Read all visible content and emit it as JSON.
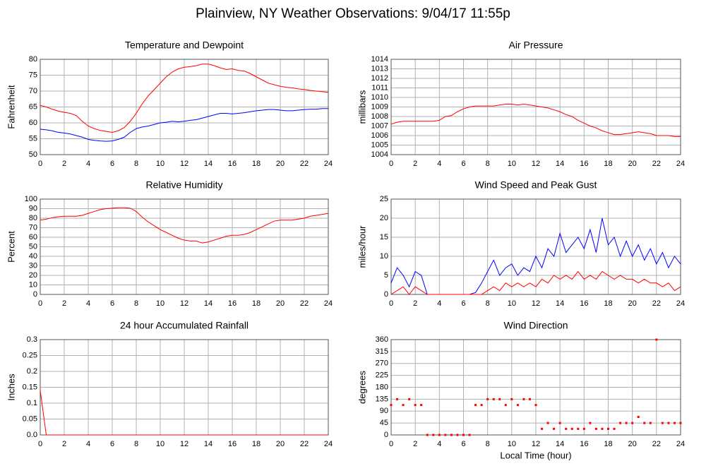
{
  "title": "Plainview, NY Weather Observations: 9/04/17 11:55p",
  "chart_data": [
    {
      "type": "line",
      "title": "Temperature and Dewpoint",
      "ylabel": "Fahrenheit",
      "x": [
        0,
        0.5,
        1,
        1.5,
        2,
        2.5,
        3,
        3.5,
        4,
        4.5,
        5,
        5.5,
        6,
        6.5,
        7,
        7.5,
        8,
        8.5,
        9,
        9.5,
        10,
        10.5,
        11,
        11.5,
        12,
        12.5,
        13,
        13.5,
        14,
        14.5,
        15,
        15.5,
        16,
        16.5,
        17,
        17.5,
        18,
        18.5,
        19,
        19.5,
        20,
        20.5,
        21,
        21.5,
        22,
        22.5,
        23,
        23.5,
        24
      ],
      "series": [
        {
          "color": "#ff0000",
          "values": [
            65.5,
            65,
            64.3,
            63.7,
            63.3,
            63,
            62.3,
            60.5,
            59,
            58.2,
            57.6,
            57.3,
            57,
            57.5,
            58.5,
            60.5,
            63,
            66,
            68.5,
            70.5,
            72.5,
            74.5,
            76,
            77,
            77.5,
            77.7,
            78,
            78.5,
            78.5,
            78,
            77.3,
            76.8,
            77,
            76.5,
            76.3,
            75.5,
            74.5,
            73.5,
            72.5,
            72,
            71.5,
            71.2,
            71,
            70.7,
            70.5,
            70.2,
            70,
            69.8,
            69.6
          ]
        },
        {
          "color": "#0000ff",
          "values": [
            58,
            57.8,
            57.5,
            57,
            56.8,
            56.5,
            56,
            55.5,
            54.8,
            54.5,
            54.3,
            54.2,
            54.3,
            54.8,
            55.5,
            57,
            58.2,
            58.7,
            59,
            59.5,
            60,
            60.2,
            60.5,
            60.3,
            60.5,
            60.8,
            61,
            61.5,
            62,
            62.5,
            63,
            63,
            62.8,
            63,
            63.2,
            63.5,
            63.8,
            64,
            64.2,
            64.2,
            64,
            63.8,
            63.8,
            64,
            64.2,
            64.3,
            64.3,
            64.5,
            64.5
          ]
        }
      ],
      "xlim": [
        0,
        24
      ],
      "xticks": [
        0,
        2,
        4,
        6,
        8,
        10,
        12,
        14,
        16,
        18,
        20,
        22,
        24
      ],
      "ylim": [
        50,
        80
      ],
      "yticks": [
        50,
        55,
        60,
        65,
        70,
        75,
        80
      ],
      "grid": true
    },
    {
      "type": "line",
      "title": "Air Pressure",
      "ylabel": "millibars",
      "x": [
        0,
        0.5,
        1,
        1.5,
        2,
        2.5,
        3,
        3.5,
        4,
        4.5,
        5,
        5.5,
        6,
        6.5,
        7,
        7.5,
        8,
        8.5,
        9,
        9.5,
        10,
        10.5,
        11,
        11.5,
        12,
        12.5,
        13,
        13.5,
        14,
        14.5,
        15,
        15.5,
        16,
        16.5,
        17,
        17.5,
        18,
        18.5,
        19,
        19.5,
        20,
        20.5,
        21,
        21.5,
        22,
        22.5,
        23,
        23.5,
        24
      ],
      "series": [
        {
          "color": "#ff0000",
          "values": [
            1007.2,
            1007.4,
            1007.5,
            1007.5,
            1007.5,
            1007.5,
            1007.5,
            1007.5,
            1007.6,
            1008,
            1008.1,
            1008.5,
            1008.8,
            1009,
            1009.1,
            1009.1,
            1009.1,
            1009.1,
            1009.2,
            1009.3,
            1009.3,
            1009.2,
            1009.3,
            1009.2,
            1009.1,
            1009,
            1008.9,
            1008.7,
            1008.5,
            1008.2,
            1008,
            1007.6,
            1007.3,
            1007,
            1006.8,
            1006.5,
            1006.3,
            1006.1,
            1006.1,
            1006.2,
            1006.3,
            1006.4,
            1006.3,
            1006.2,
            1006,
            1006,
            1006,
            1005.9,
            1005.9
          ]
        }
      ],
      "xlim": [
        0,
        24
      ],
      "xticks": [
        0,
        2,
        4,
        6,
        8,
        10,
        12,
        14,
        16,
        18,
        20,
        22,
        24
      ],
      "ylim": [
        1004,
        1014
      ],
      "yticks": [
        1004,
        1005,
        1006,
        1007,
        1008,
        1009,
        1010,
        1011,
        1012,
        1013,
        1014
      ],
      "grid": true
    },
    {
      "type": "line",
      "title": "Relative Humidity",
      "ylabel": "Percent",
      "x": [
        0,
        0.5,
        1,
        1.5,
        2,
        2.5,
        3,
        3.5,
        4,
        4.5,
        5,
        5.5,
        6,
        6.5,
        7,
        7.5,
        8,
        8.5,
        9,
        9.5,
        10,
        10.5,
        11,
        11.5,
        12,
        12.5,
        13,
        13.5,
        14,
        14.5,
        15,
        15.5,
        16,
        16.5,
        17,
        17.5,
        18,
        18.5,
        19,
        19.5,
        20,
        20.5,
        21,
        21.5,
        22,
        22.5,
        23,
        23.5,
        24
      ],
      "series": [
        {
          "color": "#ff0000",
          "values": [
            78,
            79,
            80.5,
            81.5,
            82,
            82,
            82,
            83,
            85,
            87,
            89,
            90,
            90.5,
            91,
            91,
            90.5,
            87,
            81,
            76,
            72,
            68,
            65,
            62,
            59,
            57,
            56,
            56,
            54,
            55,
            57,
            59,
            61,
            62,
            62,
            63,
            65,
            68,
            71,
            74,
            77,
            78,
            78,
            78,
            79,
            80,
            82,
            83,
            84,
            85
          ]
        }
      ],
      "xlim": [
        0,
        24
      ],
      "xticks": [
        0,
        2,
        4,
        6,
        8,
        10,
        12,
        14,
        16,
        18,
        20,
        22,
        24
      ],
      "ylim": [
        0,
        100
      ],
      "yticks": [
        0,
        10,
        20,
        30,
        40,
        50,
        60,
        70,
        80,
        90,
        100
      ],
      "grid": true
    },
    {
      "type": "line",
      "title": "Wind Speed and Peak Gust",
      "ylabel": "miles/hour",
      "x": [
        0,
        0.5,
        1,
        1.5,
        2,
        2.5,
        3,
        3.5,
        4,
        4.5,
        5,
        5.5,
        6,
        6.5,
        7,
        7.5,
        8,
        8.5,
        9,
        9.5,
        10,
        10.5,
        11,
        11.5,
        12,
        12.5,
        13,
        13.5,
        14,
        14.5,
        15,
        15.5,
        16,
        16.5,
        17,
        17.5,
        18,
        18.5,
        19,
        19.5,
        20,
        20.5,
        21,
        21.5,
        22,
        22.5,
        23,
        23.5,
        24
      ],
      "series": [
        {
          "color": "#0000ff",
          "values": [
            3,
            7,
            5,
            2,
            6,
            5,
            0,
            0,
            0,
            0,
            0,
            0,
            0,
            0,
            0.5,
            3,
            6,
            9,
            5,
            7,
            8,
            5,
            7,
            6,
            10,
            7,
            12,
            10,
            16,
            11,
            13,
            15,
            12,
            17,
            11,
            20,
            13,
            15,
            10,
            14,
            10,
            13,
            9,
            12,
            8,
            11,
            7,
            10,
            8
          ]
        },
        {
          "color": "#ff0000",
          "values": [
            0,
            1,
            2,
            0,
            2,
            1,
            0,
            0,
            0,
            0,
            0,
            0,
            0,
            0,
            0,
            0,
            1,
            2,
            1,
            3,
            2,
            3,
            2,
            3,
            2,
            4,
            3,
            5,
            4,
            5,
            4,
            6,
            4,
            5,
            4,
            6,
            5,
            4,
            5,
            4,
            4,
            3,
            4,
            3,
            3,
            2,
            3,
            1,
            2
          ]
        }
      ],
      "xlim": [
        0,
        24
      ],
      "xticks": [
        0,
        2,
        4,
        6,
        8,
        10,
        12,
        14,
        16,
        18,
        20,
        22,
        24
      ],
      "ylim": [
        0,
        25
      ],
      "yticks": [
        0,
        5,
        10,
        15,
        20,
        25
      ],
      "grid": true
    },
    {
      "type": "line",
      "title": "24 hour Accumulated Rainfall",
      "ylabel": "Inches",
      "x": [
        0,
        0.5,
        1,
        1.5,
        2,
        2.5,
        3,
        3.5,
        4,
        4.5,
        5,
        5.5,
        6,
        6.5,
        7,
        7.5,
        8,
        8.5,
        9,
        9.5,
        10,
        10.5,
        11,
        11.5,
        12,
        12.5,
        13,
        13.5,
        14,
        14.5,
        15,
        15.5,
        16,
        16.5,
        17,
        17.5,
        18,
        18.5,
        19,
        19.5,
        20,
        20.5,
        21,
        21.5,
        22,
        22.5,
        23,
        23.5,
        24
      ],
      "series": [
        {
          "color": "#ff0000",
          "values": [
            0.14,
            0,
            0,
            0,
            0,
            0,
            0,
            0,
            0,
            0,
            0,
            0,
            0,
            0,
            0,
            0,
            0,
            0,
            0,
            0,
            0,
            0,
            0,
            0,
            0,
            0,
            0,
            0,
            0,
            0,
            0,
            0,
            0,
            0,
            0,
            0,
            0,
            0,
            0,
            0,
            0,
            0,
            0,
            0,
            0,
            0,
            0,
            0,
            0
          ]
        }
      ],
      "xlim": [
        0,
        24
      ],
      "xticks": [
        0,
        2,
        4,
        6,
        8,
        10,
        12,
        14,
        16,
        18,
        20,
        22,
        24
      ],
      "ylim": [
        0,
        0.3
      ],
      "yticks": [
        {
          "value": 0,
          "label": "0.0"
        },
        0.05,
        0.1,
        0.15,
        0.2,
        0.25,
        0.3
      ],
      "grid": true
    },
    {
      "type": "scatter",
      "title": "Wind Direction",
      "ylabel": "degrees",
      "xlabel": "Local Time (hour)",
      "x": [
        0,
        0.5,
        1,
        1.5,
        2,
        2.5,
        3,
        3.5,
        4,
        4.5,
        5,
        5.5,
        6,
        6.5,
        7,
        7.5,
        8,
        8.5,
        9,
        9.5,
        10,
        10.5,
        11,
        11.5,
        12,
        12.5,
        13,
        13.5,
        14,
        14.5,
        15,
        15.5,
        16,
        16.5,
        17,
        17.5,
        18,
        18.5,
        19,
        19.5,
        20,
        20.5,
        21,
        21.5,
        22,
        22.5,
        23,
        23.5,
        24
      ],
      "series": [
        {
          "color": "#ff0000",
          "values": [
            113,
            135,
            113,
            135,
            113,
            113,
            0,
            0,
            0,
            0,
            0,
            0,
            0,
            0,
            113,
            113,
            135,
            135,
            135,
            113,
            135,
            113,
            135,
            135,
            113,
            23,
            45,
            23,
            45,
            23,
            23,
            23,
            23,
            45,
            23,
            23,
            23,
            23,
            45,
            45,
            45,
            68,
            45,
            45,
            360,
            45,
            45,
            45,
            45
          ]
        }
      ],
      "xlim": [
        0,
        24
      ],
      "xticks": [
        0,
        2,
        4,
        6,
        8,
        10,
        12,
        14,
        16,
        18,
        20,
        22,
        24
      ],
      "ylim": [
        0,
        360
      ],
      "yticks": [
        0,
        45,
        90,
        135,
        180,
        225,
        270,
        315,
        360
      ],
      "grid": true
    }
  ]
}
